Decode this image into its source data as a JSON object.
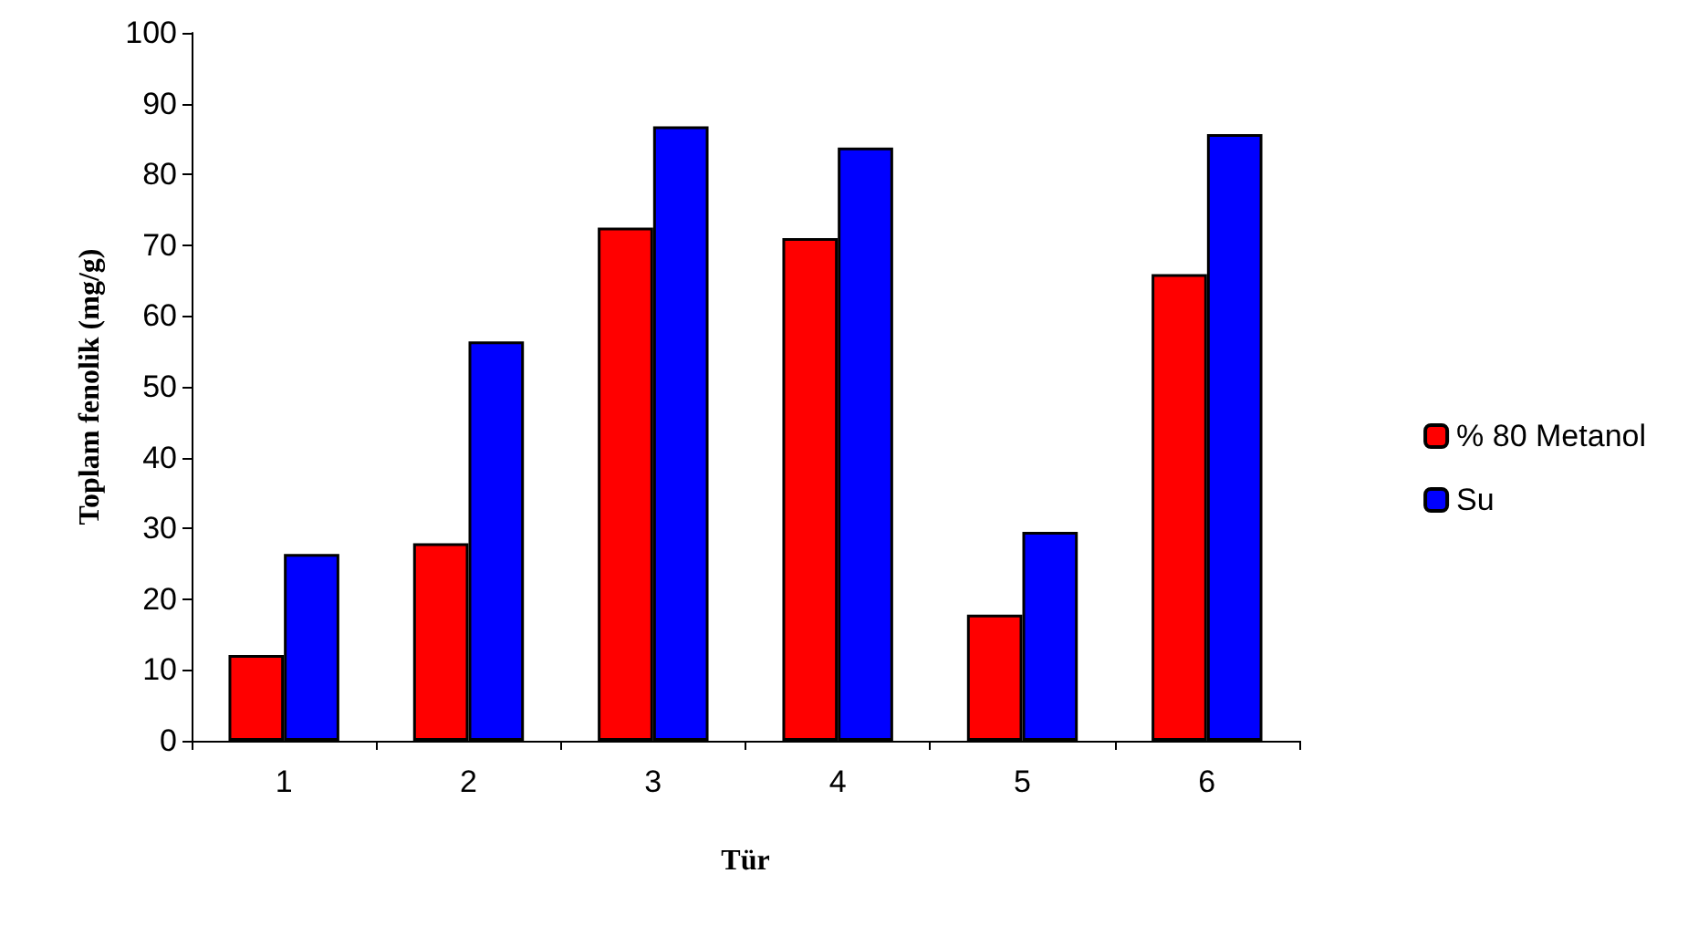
{
  "chart_data": {
    "type": "bar",
    "xlabel": "Tür",
    "ylabel": "Toplam fenolik (mg/g)",
    "categories": [
      "1",
      "2",
      "3",
      "4",
      "5",
      "6"
    ],
    "series": [
      {
        "name": "% 80 Metanol",
        "color": "#ff0000",
        "values": [
          12.1,
          27.9,
          72.5,
          71.0,
          17.8,
          65.9
        ]
      },
      {
        "name": "Su",
        "color": "#0000ff",
        "values": [
          26.4,
          56.4,
          86.8,
          83.8,
          29.5,
          85.7
        ]
      }
    ],
    "ylim": [
      0,
      100
    ],
    "yticks": [
      0,
      10,
      20,
      30,
      40,
      50,
      60,
      70,
      80,
      90,
      100
    ],
    "grid": false,
    "legend": "right"
  }
}
